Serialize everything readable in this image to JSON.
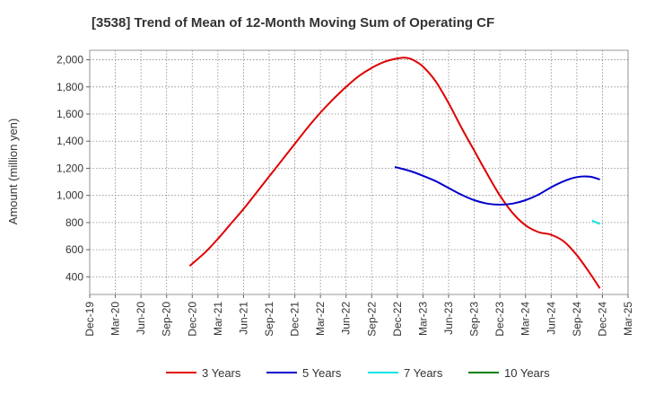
{
  "chart_data": {
    "type": "line",
    "title": "[3538]  Trend of Mean of 12-Month Moving Sum of Operating CF",
    "xlabel": "",
    "ylabel": "Amount (million yen)",
    "ylim": [
      270,
      2070
    ],
    "yticks": [
      400,
      600,
      800,
      1000,
      1200,
      1400,
      1600,
      1800,
      2000
    ],
    "ytick_labels": [
      "400",
      "600",
      "800",
      "1,000",
      "1,200",
      "1,400",
      "1,600",
      "1,800",
      "2,000"
    ],
    "x_categories": [
      "Dec-19",
      "Mar-20",
      "Jun-20",
      "Sep-20",
      "Dec-20",
      "Mar-21",
      "Jun-21",
      "Sep-21",
      "Dec-21",
      "Mar-22",
      "Jun-22",
      "Sep-22",
      "Dec-22",
      "Mar-23",
      "Jun-23",
      "Sep-23",
      "Dec-23",
      "Mar-24",
      "Jun-24",
      "Sep-24",
      "Dec-24",
      "Mar-25"
    ],
    "grid": true,
    "legend_position": "bottom",
    "series": [
      {
        "name": "3 Years",
        "color": "#e00000",
        "points": [
          [
            3.9,
            480
          ],
          [
            4.5,
            580
          ],
          [
            5,
            680
          ],
          [
            5.5,
            790
          ],
          [
            6,
            900
          ],
          [
            6.5,
            1020
          ],
          [
            7,
            1140
          ],
          [
            7.5,
            1260
          ],
          [
            8,
            1380
          ],
          [
            8.5,
            1500
          ],
          [
            9,
            1610
          ],
          [
            9.5,
            1710
          ],
          [
            10,
            1800
          ],
          [
            10.5,
            1880
          ],
          [
            11,
            1940
          ],
          [
            11.5,
            1985
          ],
          [
            12,
            2010
          ],
          [
            12.3,
            2015
          ],
          [
            12.6,
            2000
          ],
          [
            13,
            1950
          ],
          [
            13.5,
            1840
          ],
          [
            14,
            1680
          ],
          [
            14.5,
            1500
          ],
          [
            15,
            1330
          ],
          [
            15.5,
            1160
          ],
          [
            16,
            1000
          ],
          [
            16.5,
            870
          ],
          [
            17,
            780
          ],
          [
            17.5,
            730
          ],
          [
            18,
            710
          ],
          [
            18.5,
            660
          ],
          [
            19,
            560
          ],
          [
            19.5,
            430
          ],
          [
            19.9,
            315
          ]
        ]
      },
      {
        "name": "5 Years",
        "color": "#0000cc",
        "points": [
          [
            11.9,
            1210
          ],
          [
            12.5,
            1180
          ],
          [
            13,
            1145
          ],
          [
            13.5,
            1105
          ],
          [
            14,
            1055
          ],
          [
            14.5,
            1005
          ],
          [
            15,
            965
          ],
          [
            15.5,
            940
          ],
          [
            16,
            932
          ],
          [
            16.5,
            940
          ],
          [
            17,
            965
          ],
          [
            17.5,
            1005
          ],
          [
            18,
            1060
          ],
          [
            18.5,
            1105
          ],
          [
            19,
            1135
          ],
          [
            19.5,
            1138
          ],
          [
            19.9,
            1118
          ]
        ]
      },
      {
        "name": "7 Years",
        "color": "#00e5e5",
        "points": [
          [
            19.6,
            815
          ],
          [
            19.9,
            790
          ]
        ]
      },
      {
        "name": "10 Years",
        "color": "#008000",
        "points": []
      }
    ]
  }
}
